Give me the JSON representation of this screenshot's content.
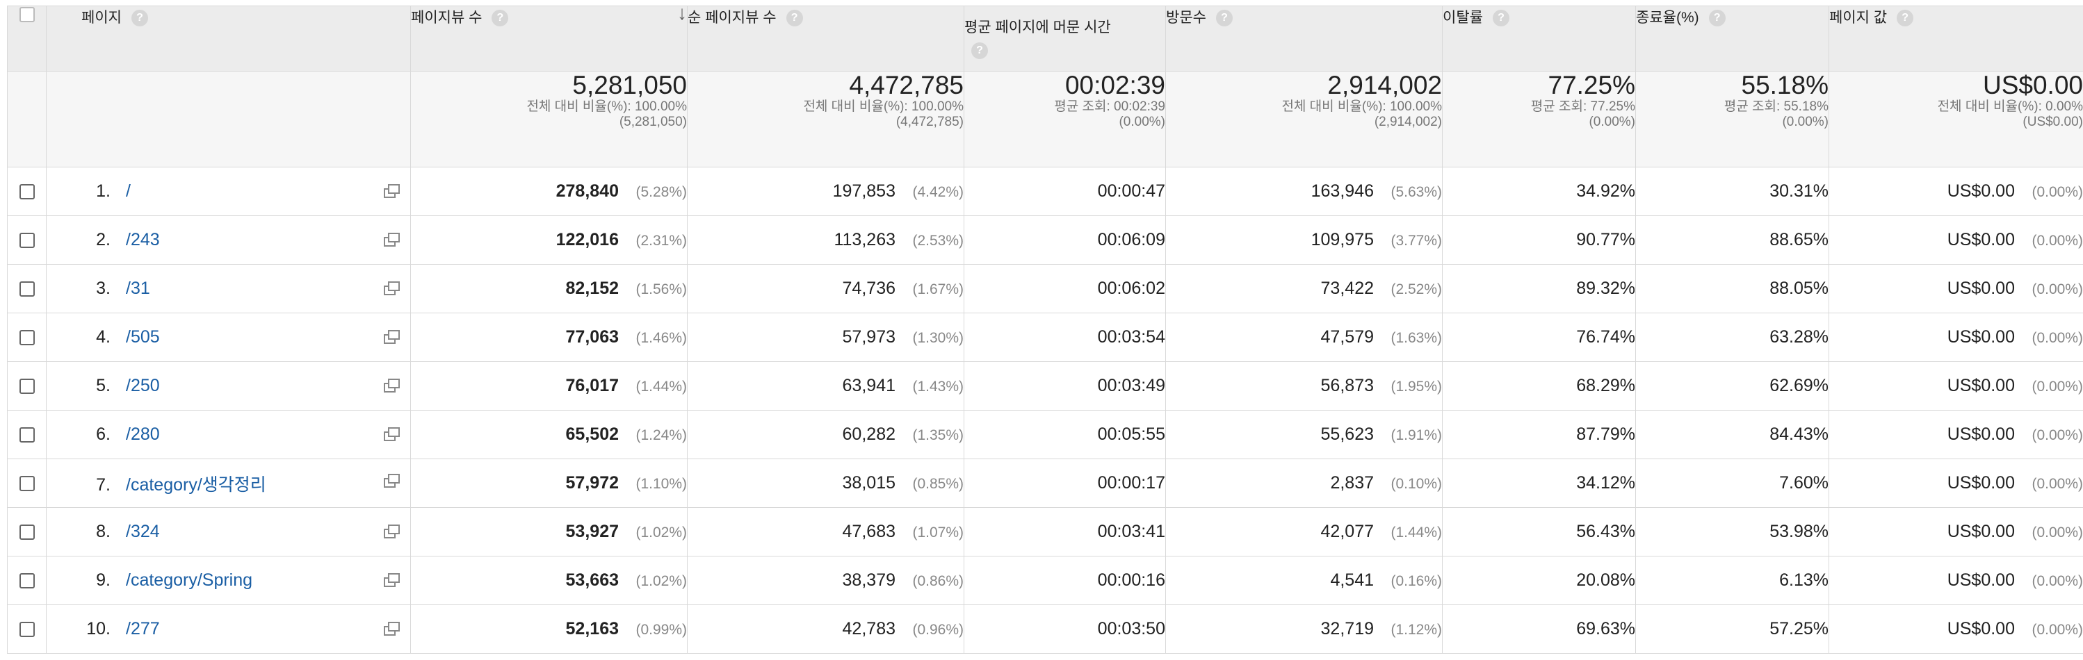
{
  "columns": {
    "page": "페이지",
    "pageviews": "페이지뷰 수",
    "unique_pageviews": "순 페이지뷰 수",
    "avg_time": "평균 페이지에 머문 시간",
    "entrances": "방문수",
    "bounce_rate": "이탈률",
    "exit_rate": "종료율(%)",
    "page_value": "페이지 값"
  },
  "summary": {
    "pageviews": {
      "value": "5,281,050",
      "line1": "전체 대비 비율(%): 100.00%",
      "line2": "(5,281,050)"
    },
    "unique_pageviews": {
      "value": "4,472,785",
      "line1": "전체 대비 비율(%): 100.00%",
      "line2": "(4,472,785)"
    },
    "avg_time": {
      "value": "00:02:39",
      "line1": "평균 조회: 00:02:39",
      "line2": "(0.00%)"
    },
    "entrances": {
      "value": "2,914,002",
      "line1": "전체 대비 비율(%): 100.00%",
      "line2": "(2,914,002)"
    },
    "bounce_rate": {
      "value": "77.25%",
      "line1": "평균 조회: 77.25%",
      "line2": "(0.00%)"
    },
    "exit_rate": {
      "value": "55.18%",
      "line1": "평균 조회: 55.18%",
      "line2": "(0.00%)"
    },
    "page_value": {
      "value": "US$0.00",
      "line1": "전체 대비 비율(%): 0.00%",
      "line2": "(US$0.00)"
    }
  },
  "rows": [
    {
      "num": "1.",
      "page": "/",
      "pv": "278,840",
      "pv_pct": "(5.28%)",
      "upv": "197,853",
      "upv_pct": "(4.42%)",
      "time": "00:00:47",
      "ent": "163,946",
      "ent_pct": "(5.63%)",
      "bounce": "34.92%",
      "exit": "30.31%",
      "val": "US$0.00",
      "val_pct": "(0.00%)"
    },
    {
      "num": "2.",
      "page": "/243",
      "pv": "122,016",
      "pv_pct": "(2.31%)",
      "upv": "113,263",
      "upv_pct": "(2.53%)",
      "time": "00:06:09",
      "ent": "109,975",
      "ent_pct": "(3.77%)",
      "bounce": "90.77%",
      "exit": "88.65%",
      "val": "US$0.00",
      "val_pct": "(0.00%)"
    },
    {
      "num": "3.",
      "page": "/31",
      "pv": "82,152",
      "pv_pct": "(1.56%)",
      "upv": "74,736",
      "upv_pct": "(1.67%)",
      "time": "00:06:02",
      "ent": "73,422",
      "ent_pct": "(2.52%)",
      "bounce": "89.32%",
      "exit": "88.05%",
      "val": "US$0.00",
      "val_pct": "(0.00%)"
    },
    {
      "num": "4.",
      "page": "/505",
      "pv": "77,063",
      "pv_pct": "(1.46%)",
      "upv": "57,973",
      "upv_pct": "(1.30%)",
      "time": "00:03:54",
      "ent": "47,579",
      "ent_pct": "(1.63%)",
      "bounce": "76.74%",
      "exit": "63.28%",
      "val": "US$0.00",
      "val_pct": "(0.00%)"
    },
    {
      "num": "5.",
      "page": "/250",
      "pv": "76,017",
      "pv_pct": "(1.44%)",
      "upv": "63,941",
      "upv_pct": "(1.43%)",
      "time": "00:03:49",
      "ent": "56,873",
      "ent_pct": "(1.95%)",
      "bounce": "68.29%",
      "exit": "62.69%",
      "val": "US$0.00",
      "val_pct": "(0.00%)"
    },
    {
      "num": "6.",
      "page": "/280",
      "pv": "65,502",
      "pv_pct": "(1.24%)",
      "upv": "60,282",
      "upv_pct": "(1.35%)",
      "time": "00:05:55",
      "ent": "55,623",
      "ent_pct": "(1.91%)",
      "bounce": "87.79%",
      "exit": "84.43%",
      "val": "US$0.00",
      "val_pct": "(0.00%)"
    },
    {
      "num": "7.",
      "page": "/category/생각정리",
      "pv": "57,972",
      "pv_pct": "(1.10%)",
      "upv": "38,015",
      "upv_pct": "(0.85%)",
      "time": "00:00:17",
      "ent": "2,837",
      "ent_pct": "(0.10%)",
      "bounce": "34.12%",
      "exit": "7.60%",
      "val": "US$0.00",
      "val_pct": "(0.00%)"
    },
    {
      "num": "8.",
      "page": "/324",
      "pv": "53,927",
      "pv_pct": "(1.02%)",
      "upv": "47,683",
      "upv_pct": "(1.07%)",
      "time": "00:03:41",
      "ent": "42,077",
      "ent_pct": "(1.44%)",
      "bounce": "56.43%",
      "exit": "53.98%",
      "val": "US$0.00",
      "val_pct": "(0.00%)"
    },
    {
      "num": "9.",
      "page": "/category/Spring",
      "pv": "53,663",
      "pv_pct": "(1.02%)",
      "upv": "38,379",
      "upv_pct": "(0.86%)",
      "time": "00:00:16",
      "ent": "4,541",
      "ent_pct": "(0.16%)",
      "bounce": "20.08%",
      "exit": "6.13%",
      "val": "US$0.00",
      "val_pct": "(0.00%)"
    },
    {
      "num": "10.",
      "page": "/277",
      "pv": "52,163",
      "pv_pct": "(0.99%)",
      "upv": "42,783",
      "upv_pct": "(0.96%)",
      "time": "00:03:50",
      "ent": "32,719",
      "ent_pct": "(1.12%)",
      "bounce": "69.63%",
      "exit": "57.25%",
      "val": "US$0.00",
      "val_pct": "(0.00%)"
    }
  ]
}
